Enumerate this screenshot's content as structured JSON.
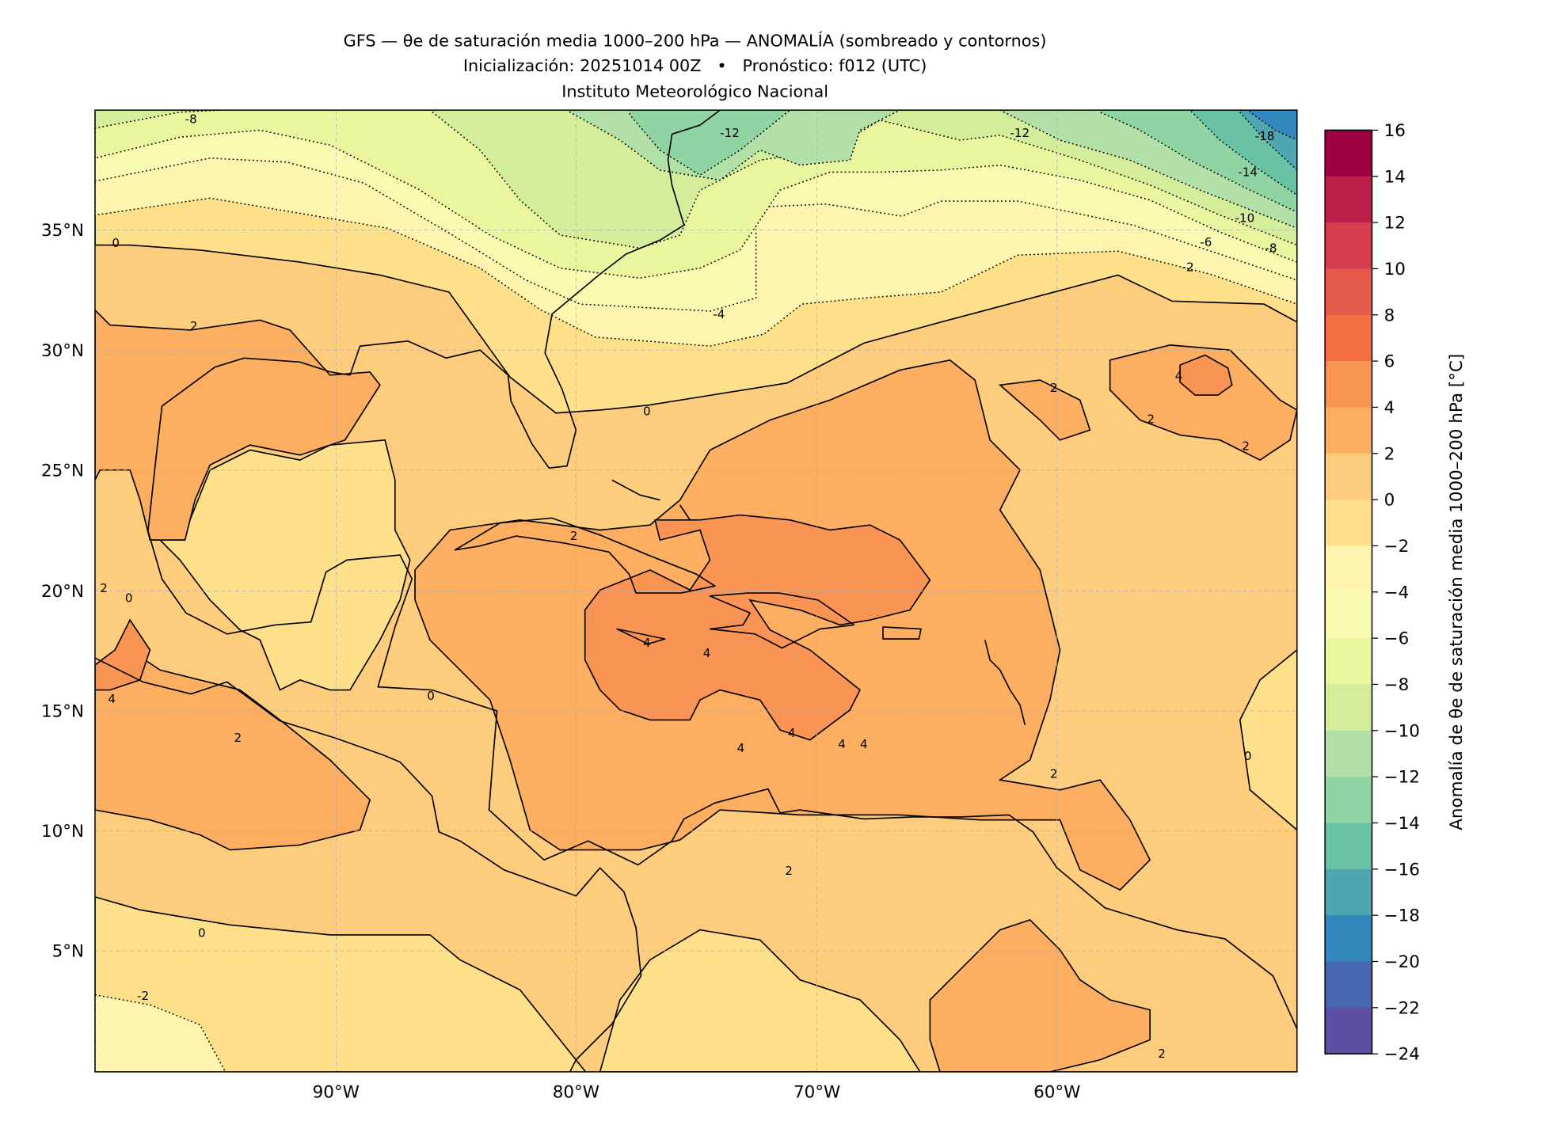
{
  "title": {
    "line1": "GFS — θe de saturación media 1000–200 hPa — ANOMALÍA (sombreado y contornos)",
    "line2": "Inicialización: 20251014 00Z   •   Pronóstico: f012 (UTC)",
    "line3": "Instituto Meteorológico Nacional"
  },
  "map": {
    "extent_lon": [
      -100,
      -50
    ],
    "extent_lat": [
      0,
      40
    ],
    "lon_ticks": [
      "90°W",
      "80°W",
      "70°W",
      "60°W"
    ],
    "lat_ticks": [
      "35°N",
      "30°N",
      "25°N",
      "20°N",
      "15°N",
      "10°N",
      "5°N"
    ],
    "contour_labels": [
      "-8",
      "-12",
      "-12",
      "-18",
      "-14",
      "-10",
      "-6",
      "-8",
      "-2",
      "-4",
      "0",
      "2",
      "0",
      "2",
      "2",
      "4",
      "2",
      "2",
      "2",
      "0",
      "4",
      "4",
      "4",
      "4",
      "4",
      "2",
      "0",
      "0",
      "2",
      "0",
      "-2",
      "2",
      "4",
      "4",
      "2"
    ]
  },
  "colorbar": {
    "label": "Anomalía de θe de saturación media 1000–200 hPa [°C]",
    "ticks": [
      "16",
      "14",
      "12",
      "10",
      "8",
      "6",
      "4",
      "2",
      "0",
      "−2",
      "−4",
      "−6",
      "−8",
      "−10",
      "−12",
      "−14",
      "−16",
      "−18",
      "−20",
      "−22",
      "−24"
    ],
    "colors": [
      "#9e0142",
      "#bb2049",
      "#d53e4f",
      "#e55a4b",
      "#f46d43",
      "#f99455",
      "#fdae61",
      "#fdcc7c",
      "#fee08b",
      "#fff5ae",
      "#f9fbb1",
      "#e9f69d",
      "#d4ed9b",
      "#b2e0a6",
      "#91d4a4",
      "#68c3a5",
      "#4fa5b1",
      "#3288bd",
      "#4667af",
      "#5e4fa2"
    ]
  }
}
